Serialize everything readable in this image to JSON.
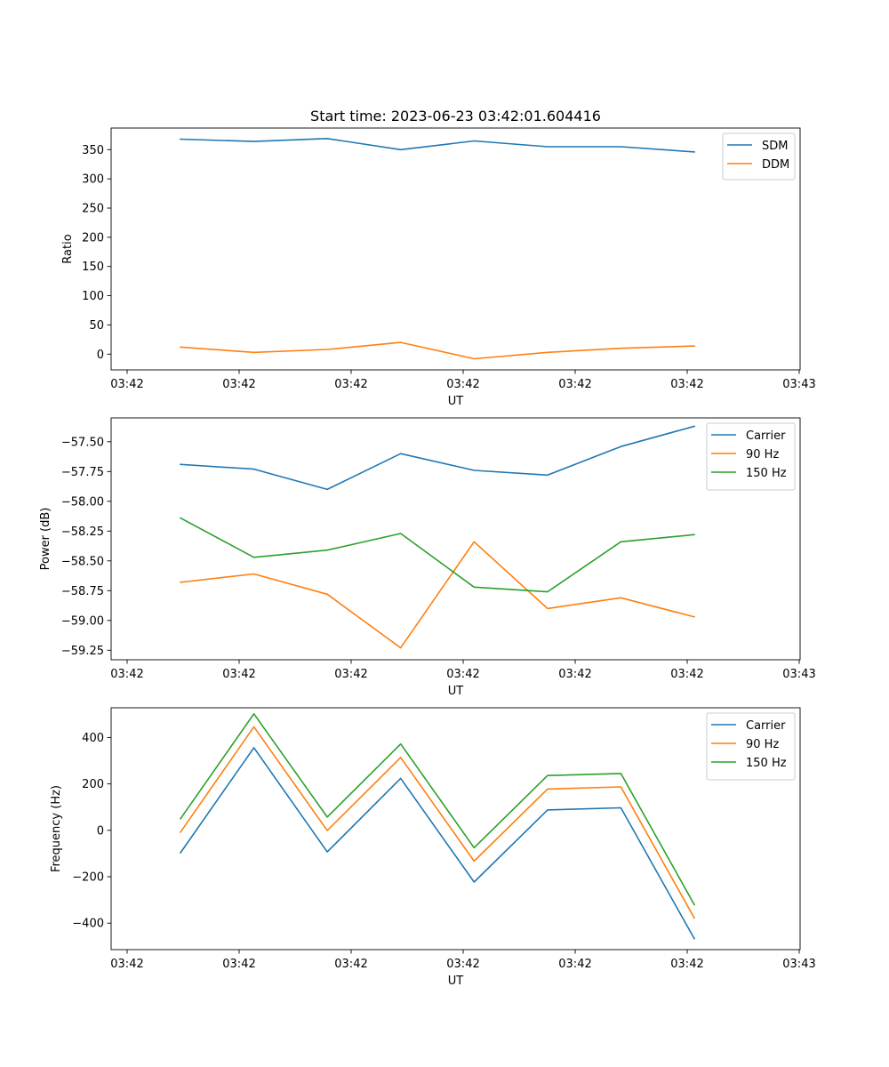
{
  "figure": {
    "title": "Start time: 2023-06-23 03:42:01.604416"
  },
  "chart_data": [
    {
      "type": "line",
      "title": "Start time: 2023-06-23 03:42:01.604416",
      "xlabel": "UT",
      "ylabel": "Ratio",
      "x_tick_labels": [
        "03:42",
        "03:42",
        "03:42",
        "03:42",
        "03:42",
        "03:42",
        "03:43"
      ],
      "x": [
        0.47,
        0.8,
        1.13,
        1.46,
        1.79,
        2.12,
        2.45,
        2.78
      ],
      "xlim": [
        0,
        3
      ],
      "ylim": [
        -27,
        387
      ],
      "yticks": [
        0,
        50,
        100,
        150,
        200,
        250,
        300,
        350
      ],
      "legend_position": "upper right",
      "grid": false,
      "series": [
        {
          "name": "SDM",
          "color": "#1f77b4",
          "values": [
            368,
            364,
            369,
            350,
            365,
            355,
            355,
            346
          ]
        },
        {
          "name": "DDM",
          "color": "#ff7f0e",
          "values": [
            12,
            3,
            8,
            20,
            -8,
            3,
            10,
            14
          ]
        }
      ]
    },
    {
      "type": "line",
      "title": "",
      "xlabel": "UT",
      "ylabel": "Power (dB)",
      "x_tick_labels": [
        "03:42",
        "03:42",
        "03:42",
        "03:42",
        "03:42",
        "03:42",
        "03:43"
      ],
      "x": [
        0.47,
        0.8,
        1.13,
        1.46,
        1.79,
        2.12,
        2.45,
        2.78
      ],
      "xlim": [
        0,
        3
      ],
      "ylim": [
        -59.33,
        -57.3
      ],
      "yticks": [
        -59.25,
        -59.0,
        -58.75,
        -58.5,
        -58.25,
        -58.0,
        -57.75,
        -57.5
      ],
      "yticklabels": [
        "−59.25",
        "−59.00",
        "−58.75",
        "−58.50",
        "−58.25",
        "−58.00",
        "−57.75",
        "−57.50"
      ],
      "legend_position": "upper right",
      "grid": false,
      "series": [
        {
          "name": "Carrier",
          "color": "#1f77b4",
          "values": [
            -57.69,
            -57.73,
            -57.9,
            -57.6,
            -57.74,
            -57.78,
            -57.54,
            -57.37
          ]
        },
        {
          "name": "90 Hz",
          "color": "#ff7f0e",
          "values": [
            -58.68,
            -58.61,
            -58.78,
            -59.23,
            -58.34,
            -58.9,
            -58.81,
            -58.97
          ]
        },
        {
          "name": "150 Hz",
          "color": "#2ca02c",
          "values": [
            -58.14,
            -58.47,
            -58.41,
            -58.27,
            -58.72,
            -58.76,
            -58.34,
            -58.28
          ]
        }
      ]
    },
    {
      "type": "line",
      "title": "",
      "xlabel": "UT",
      "ylabel": "Frequency (Hz)",
      "x_tick_labels": [
        "03:42",
        "03:42",
        "03:42",
        "03:42",
        "03:42",
        "03:42",
        "03:43"
      ],
      "x": [
        0.47,
        0.8,
        1.13,
        1.46,
        1.79,
        2.12,
        2.45,
        2.78
      ],
      "xlim": [
        0,
        3
      ],
      "ylim": [
        -514,
        528
      ],
      "yticks": [
        -400,
        -200,
        0,
        200,
        400
      ],
      "yticklabels": [
        "−400",
        "−200",
        "0",
        "200",
        "400"
      ],
      "legend_position": "upper right",
      "grid": false,
      "series": [
        {
          "name": "Carrier",
          "color": "#1f77b4",
          "values": [
            -97,
            356,
            -93,
            224,
            -223,
            88,
            97,
            -467
          ]
        },
        {
          "name": "90 Hz",
          "color": "#ff7f0e",
          "values": [
            -8,
            446,
            -1,
            314,
            -133,
            178,
            187,
            -378
          ]
        },
        {
          "name": "150 Hz",
          "color": "#2ca02c",
          "values": [
            50,
            502,
            57,
            372,
            -75,
            236,
            245,
            -320
          ]
        }
      ]
    }
  ]
}
